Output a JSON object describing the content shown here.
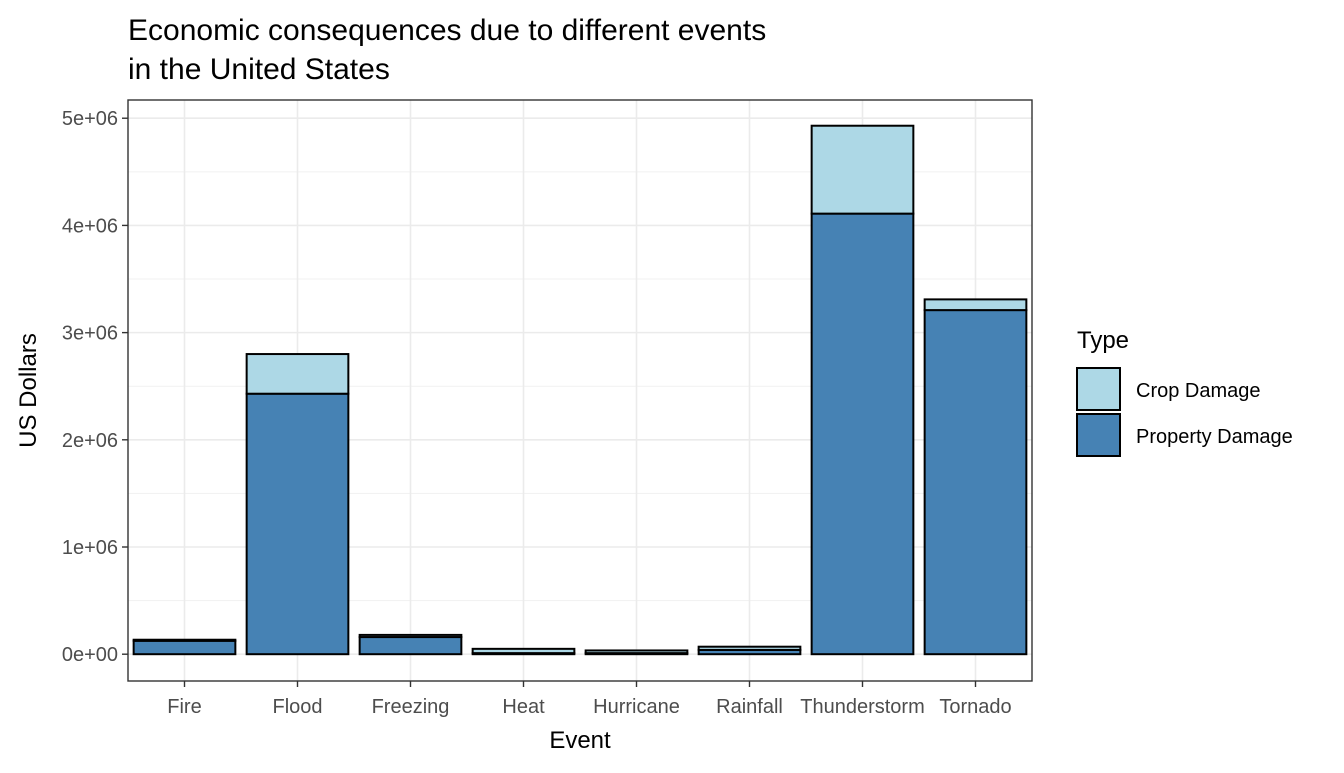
{
  "chart_data": {
    "type": "bar",
    "stacked": true,
    "title_lines": [
      "Economic consequences due to different events",
      "in the United States"
    ],
    "xlabel": "Event",
    "ylabel": "US Dollars",
    "categories": [
      "Fire",
      "Flood",
      "Freezing",
      "Heat",
      "Hurricane",
      "Rainfall",
      "Thunderstorm",
      "Tornado"
    ],
    "series": [
      {
        "name": "Property Damage",
        "color": "#4682B4",
        "values": [
          125000,
          2430000,
          160000,
          10000,
          10000,
          40000,
          4110000,
          3210000
        ]
      },
      {
        "name": "Crop Damage",
        "color": "#ADD8E6",
        "values": [
          10000,
          370000,
          20000,
          40000,
          25000,
          30000,
          820000,
          100000
        ]
      }
    ],
    "ylim": [
      -250000,
      5170000
    ],
    "yticks": [
      0,
      1000000,
      2000000,
      3000000,
      4000000,
      5000000
    ],
    "ytick_labels": [
      "0e+00",
      "1e+06",
      "2e+06",
      "3e+06",
      "4e+06",
      "5e+06"
    ],
    "grid": true,
    "legend": {
      "title": "Type",
      "position": "right",
      "entries": [
        {
          "label": "Crop Damage",
          "color": "#ADD8E6"
        },
        {
          "label": "Property Damage",
          "color": "#4682B4"
        }
      ]
    }
  }
}
